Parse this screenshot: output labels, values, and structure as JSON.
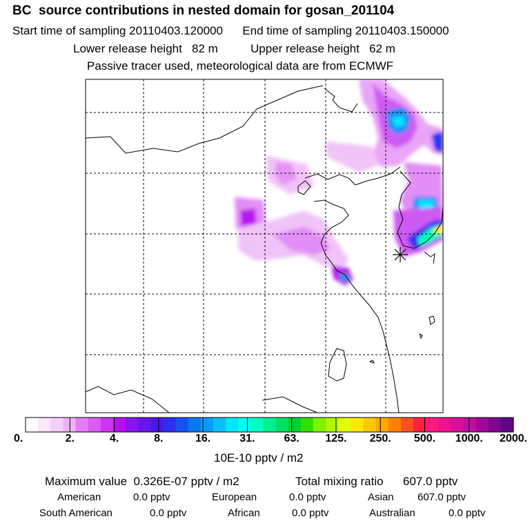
{
  "header": {
    "title": "BC  source contributions in nested domain for gosan_201104",
    "sampling": "Start time of sampling 20110403.120000      End time of sampling 20110403.150000",
    "release": "Lower release height   82 m          Upper release height   62 m",
    "note": "Passive tracer used, meteorological data are from ECMWF"
  },
  "chart_data": {
    "type": "heatmap",
    "title": "BC  source contributions in nested domain for gosan_201104",
    "grid": true,
    "colorbar": {
      "ticks": [
        "0.",
        "2.",
        "4.",
        "8.",
        "16.",
        "31.",
        "63.",
        "125.",
        "250.",
        "500.",
        "1000.",
        "2000."
      ],
      "unit": "10E-10 pptv / m2",
      "colors": [
        "#ffffff",
        "#fbe6fd",
        "#f5cdfb",
        "#efb3f8",
        "#e57ef6",
        "#dc5bf4",
        "#cf35f2",
        "#b80ef0",
        "#8a12ef",
        "#6a14ee",
        "#4a17ec",
        "#2c30ee",
        "#1552f2",
        "#0a78f5",
        "#0a9bf8",
        "#0ac0fb",
        "#00e8ff",
        "#00ffee",
        "#00ffc0",
        "#00f090",
        "#00e060",
        "#00d030",
        "#30e000",
        "#80f000",
        "#b0f800",
        "#e0ff00",
        "#ffe800",
        "#ffc800",
        "#ffa800",
        "#ff8000",
        "#ff5020",
        "#ff2040",
        "#ff1a80",
        "#f01090",
        "#d8109c",
        "#c010a0",
        "#a0089a",
        "#800890",
        "#600488"
      ]
    },
    "receptor_marker": "station-asterisk"
  },
  "footer": {
    "max_value": "Maximum value  0.326E-07 pptv / m2",
    "total": "Total mixing ratio      607.0 pptv",
    "regions_row1": [
      {
        "name": "American",
        "value": "0.0 pptv"
      },
      {
        "name": "European",
        "value": "0.0 pptv"
      },
      {
        "name": "Asian",
        "value": "607.0 pptv"
      }
    ],
    "regions_row2": [
      {
        "name": "South American",
        "value": "0.0 pptv"
      },
      {
        "name": "African",
        "value": "0.0 pptv"
      },
      {
        "name": "Australian",
        "value": "0.0 pptv"
      }
    ]
  }
}
